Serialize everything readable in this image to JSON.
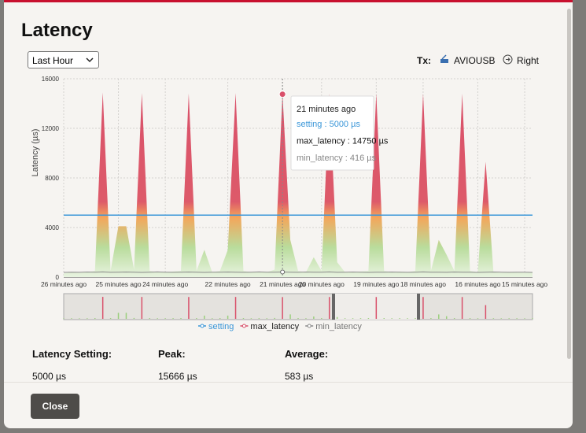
{
  "dialog": {
    "title": "Latency",
    "range_select": "Last Hour",
    "tx_label": "Tx:",
    "device": "AVIOUSB",
    "channel": "Right",
    "close": "Close"
  },
  "stats": [
    {
      "label": "Latency Setting:",
      "value": "5000 µs"
    },
    {
      "label": "Peak:",
      "value": "15666 µs"
    },
    {
      "label": "Average:",
      "value": "583 µs"
    }
  ],
  "chart_data": {
    "type": "area",
    "y_label": "Latency (µs)",
    "categories": [
      "26 minutes ago",
      null,
      null,
      null,
      null,
      null,
      null,
      "25 minutes ago",
      null,
      null,
      null,
      null,
      null,
      "24 minutes ago",
      null,
      null,
      null,
      null,
      null,
      null,
      null,
      "22 minutes ago",
      null,
      null,
      null,
      null,
      null,
      null,
      "21 minutes ago",
      null,
      null,
      null,
      null,
      "20 minutes ago",
      null,
      null,
      null,
      null,
      null,
      null,
      "19 minutes ago",
      null,
      null,
      null,
      null,
      null,
      "18 minutes ago",
      null,
      null,
      null,
      null,
      null,
      null,
      "16 minutes ago",
      null,
      null,
      null,
      null,
      null,
      "15 minutes ago",
      null
    ],
    "series": [
      {
        "name": "setting",
        "color": "#3a96d8",
        "values": [
          5000,
          5000,
          5000,
          5000,
          5000,
          5000,
          5000,
          5000,
          5000,
          5000,
          5000,
          5000,
          5000,
          5000,
          5000,
          5000,
          5000,
          5000,
          5000,
          5000,
          5000,
          5000,
          5000,
          5000,
          5000,
          5000,
          5000,
          5000,
          5000,
          5000,
          5000,
          5000,
          5000,
          5000,
          5000,
          5000,
          5000,
          5000,
          5000,
          5000,
          5000,
          5000,
          5000,
          5000,
          5000,
          5000,
          5000,
          5000,
          5000,
          5000,
          5000,
          5000,
          5000,
          5000,
          5000,
          5000,
          5000,
          5000,
          5000,
          5000,
          5000
        ]
      },
      {
        "name": "max_latency",
        "color": "#d9506a",
        "values": [
          300,
          400,
          350,
          400,
          500,
          14900,
          500,
          4100,
          4100,
          600,
          14850,
          500,
          400,
          400,
          450,
          500,
          14800,
          500,
          2200,
          400,
          500,
          2200,
          14850,
          500,
          400,
          450,
          400,
          600,
          14750,
          3000,
          500,
          400,
          1600,
          500,
          14800,
          1200,
          400,
          400,
          450,
          500,
          14800,
          500,
          400,
          450,
          400,
          500,
          14800,
          500,
          3000,
          1800,
          500,
          14800,
          500,
          400,
          9300,
          400,
          350,
          400,
          400,
          350,
          400
        ]
      },
      {
        "name": "min_latency",
        "color": "#8a8a8a",
        "values": [
          380,
          400,
          390,
          410,
          400,
          420,
          390,
          400,
          410,
          400,
          380,
          400,
          420,
          400,
          390,
          400,
          410,
          400,
          380,
          400,
          400,
          410,
          400,
          390,
          400,
          420,
          400,
          400,
          416,
          400,
          390,
          410,
          400,
          400,
          420,
          390,
          400,
          410,
          400,
          380,
          400,
          400,
          410,
          400,
          390,
          400,
          420,
          400,
          400,
          390,
          410,
          400,
          400,
          380,
          400,
          410,
          400,
          390,
          400,
          400,
          380
        ]
      }
    ],
    "ylim": [
      0,
      16000
    ],
    "yticks": [
      0,
      4000,
      8000,
      12000,
      16000
    ],
    "grid": true,
    "tooltip": {
      "title": "21 minutes ago",
      "lines": [
        "setting : 5000 µs",
        "max_latency : 14750 µs",
        "min_latency : 416 µs"
      ]
    }
  }
}
